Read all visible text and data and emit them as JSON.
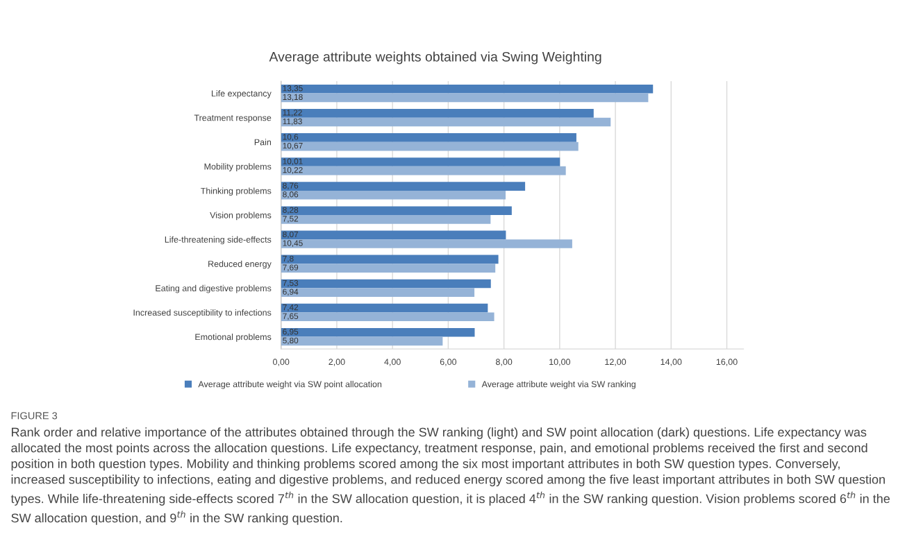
{
  "chart_data": {
    "type": "bar",
    "orientation": "horizontal",
    "title": "Average attribute weights obtained via Swing Weighting",
    "categories": [
      "Life expectancy",
      "Treatment response",
      "Pain",
      "Mobility problems",
      "Thinking problems",
      "Vision problems",
      "Life-threatening side-effects",
      "Reduced energy",
      "Eating and digestive problems",
      "Increased susceptibility to infections",
      "Emotional problems"
    ],
    "series": [
      {
        "name": "Average attribute weight via SW point allocation",
        "color": "#4a7ebb",
        "values": [
          13.35,
          11.22,
          10.6,
          10.01,
          8.76,
          8.28,
          8.07,
          7.8,
          7.53,
          7.42,
          6.95
        ],
        "value_labels": [
          "13,35",
          "11,22",
          "10,6",
          "10,01",
          "8,76",
          "8,28",
          "8,07",
          "7,8",
          "7,53",
          "7,42",
          "6,95"
        ]
      },
      {
        "name": "Average attribute weight via SW ranking",
        "color": "#95b3d7",
        "values": [
          13.18,
          11.83,
          10.67,
          10.22,
          8.06,
          7.52,
          10.45,
          7.69,
          6.94,
          7.65,
          5.8
        ],
        "value_labels": [
          "13,18",
          "11,83",
          "10,67",
          "10,22",
          "8,06",
          "7,52",
          "10,45",
          "7,69",
          "6,94",
          "7,65",
          "5,80"
        ]
      }
    ],
    "xlim": [
      0,
      16.6
    ],
    "xticks": [
      {
        "value": 0,
        "label": "0,00"
      },
      {
        "value": 2,
        "label": "2,00"
      },
      {
        "value": 4,
        "label": "4,00"
      },
      {
        "value": 6,
        "label": "6,00"
      },
      {
        "value": 8,
        "label": "8,00"
      },
      {
        "value": 10,
        "label": "10,00"
      },
      {
        "value": 12,
        "label": "12,00"
      },
      {
        "value": 14,
        "label": "14,00"
      },
      {
        "value": 16,
        "label": "16,00"
      }
    ],
    "grid": "x",
    "legend": "bottom",
    "annotations": [
      "FIGURE 3",
      "Rank order and relative importance of the attributes obtained through the SW ranking (light) and SW point allocation (dark) questions. Life expectancy was allocated the most points across the allocation questions. Life expectancy, treatment response, pain, and emotional problems received the first and second position in both question types. Mobility and thinking problems scored among the six most important attributes in both SW question types. Conversely, increased susceptibility to infections, eating and digestive problems, and reduced energy scored among the five least important attributes in both SW question types. While life-threatening side-effects scored 7$^{th}$ in the SW allocation question, it is placed 4$^{th}$ in the SW ranking question. Vision problems scored 6$^{th}$ in the SW allocation question, and 9$^{th}$ in the SW ranking question."
    ]
  }
}
